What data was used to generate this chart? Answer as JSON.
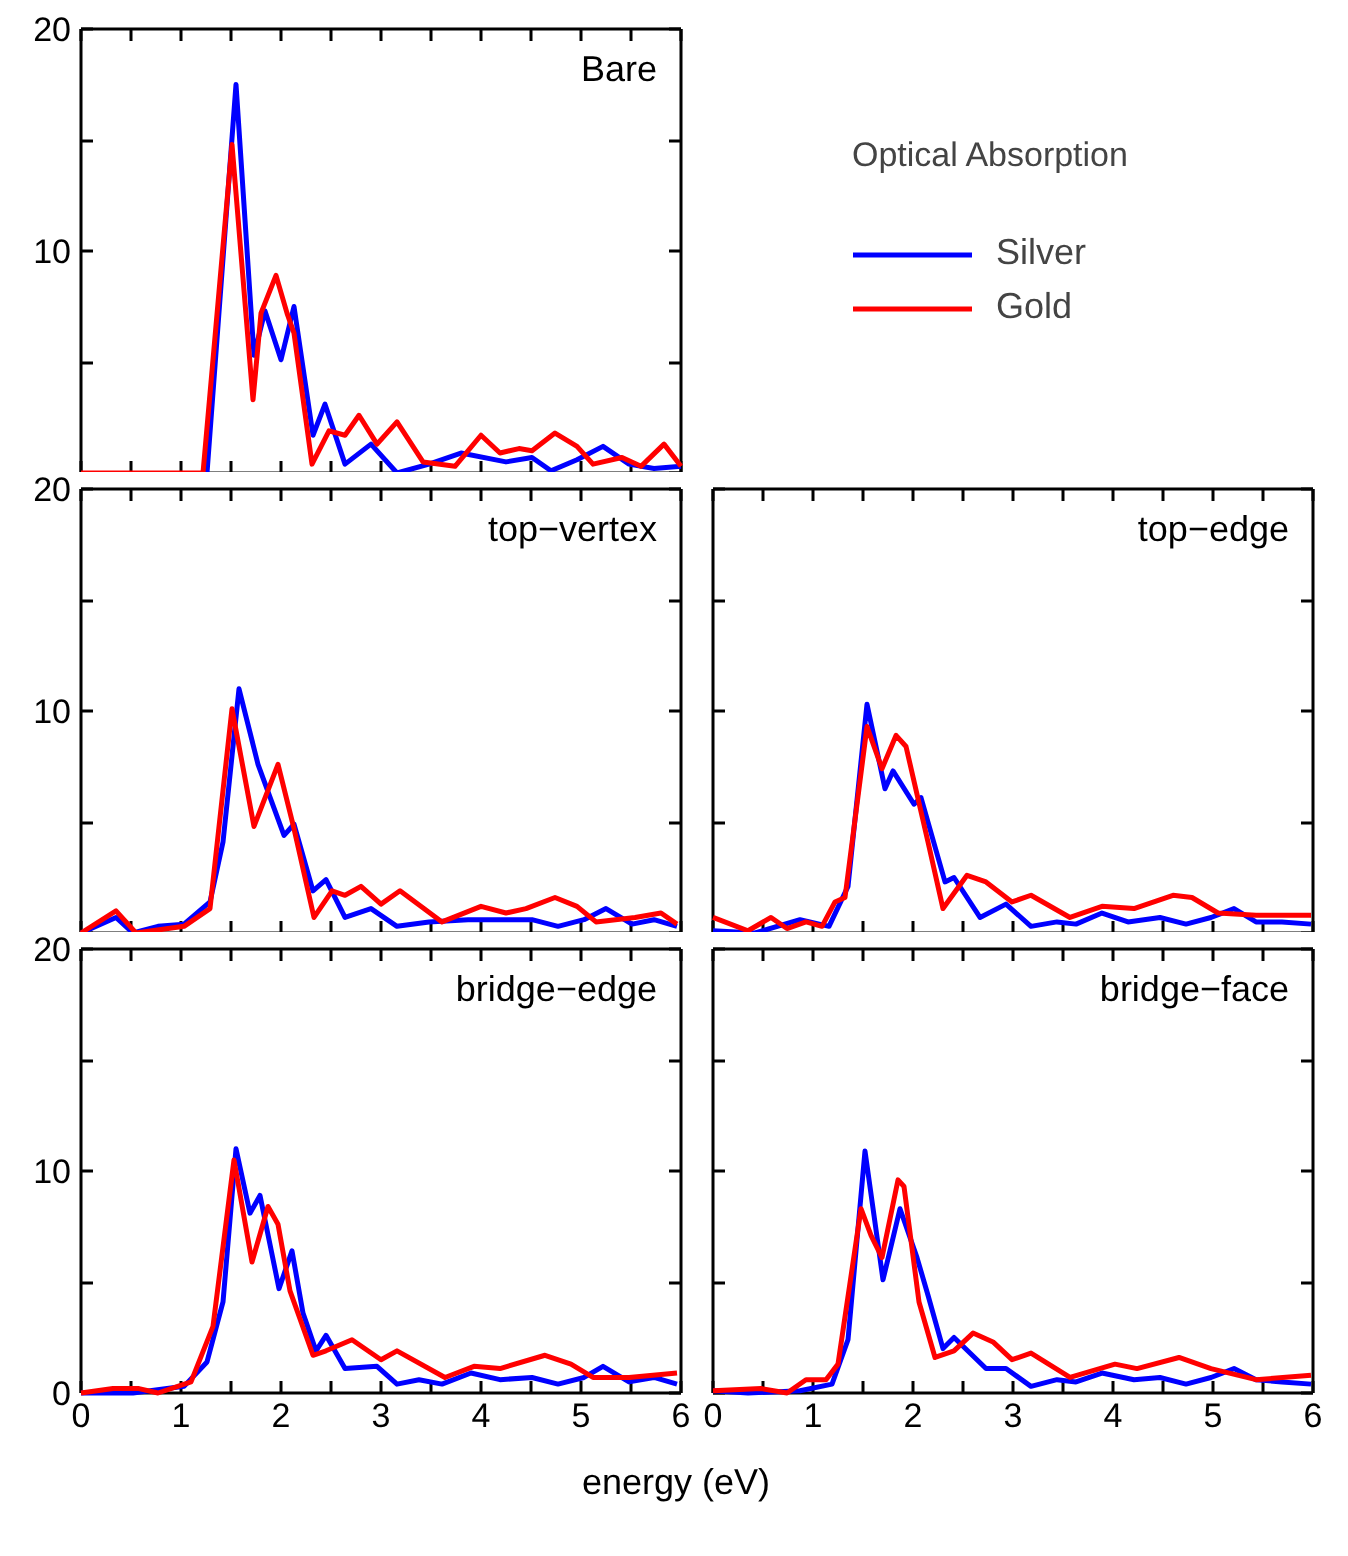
{
  "chart_data": [
    {
      "type": "line",
      "title": "Bare",
      "legend": "right",
      "legend_title": "Optical Absorption",
      "grid": false,
      "tick_labels": "y",
      "xlim": [
        0,
        6
      ],
      "ylim": [
        0,
        20
      ],
      "xticks": [
        0,
        {
          "value": 0.5,
          "label": null
        },
        1,
        {
          "value": 1.5,
          "label": null
        },
        2,
        {
          "value": 2.5,
          "label": null
        },
        3,
        {
          "value": 3.5,
          "label": null
        },
        4,
        {
          "value": 4.5,
          "label": null
        },
        5,
        {
          "value": 5.5,
          "label": null
        },
        6
      ],
      "yticks": [
        {
          "value": 0,
          "label": null
        },
        {
          "value": 5,
          "label": null
        },
        10,
        {
          "value": 15,
          "label": null
        },
        20
      ],
      "series": [
        {
          "name": "Silver",
          "color": "#0000ff",
          "x": [
            1.26,
            1.55,
            1.73,
            1.84,
            2.0,
            2.13,
            2.32,
            2.44,
            2.64,
            2.9,
            3.16,
            3.48,
            3.8,
            4.25,
            4.51,
            4.7,
            4.96,
            5.22,
            5.48,
            5.73,
            6.0
          ],
          "values": [
            0,
            17.5,
            5.3,
            7.3,
            5.1,
            7.5,
            1.7,
            3.1,
            0.4,
            1.3,
            0,
            0.4,
            0.9,
            0.5,
            0.7,
            0.1,
            0.6,
            1.2,
            0.4,
            0.2,
            0.3
          ]
        },
        {
          "name": "Gold",
          "color": "#ff0000",
          "x": [
            0,
            1.22,
            1.51,
            1.72,
            1.8,
            1.95,
            2.06,
            2.13,
            2.31,
            2.48,
            2.64,
            2.78,
            2.96,
            3.16,
            3.42,
            3.74,
            4.0,
            4.19,
            4.38,
            4.51,
            4.74,
            4.96,
            5.12,
            5.41,
            5.6,
            5.83,
            6.0
          ],
          "values": [
            0,
            0,
            14.8,
            3.3,
            7.2,
            8.9,
            7.2,
            6.3,
            0.4,
            1.9,
            1.7,
            2.6,
            1.3,
            2.3,
            0.5,
            0.3,
            1.7,
            0.9,
            1.1,
            1.0,
            1.8,
            1.2,
            0.4,
            0.7,
            0.3,
            1.3,
            0.3
          ]
        }
      ]
    },
    {
      "type": "line",
      "title": "top−vertex",
      "grid": false,
      "tick_labels": "y",
      "xlim": [
        0,
        6
      ],
      "ylim": [
        0,
        20
      ],
      "xticks": [
        0,
        {
          "value": 0.5,
          "label": null
        },
        1,
        {
          "value": 1.5,
          "label": null
        },
        2,
        {
          "value": 2.5,
          "label": null
        },
        3,
        {
          "value": 3.5,
          "label": null
        },
        4,
        {
          "value": 4.5,
          "label": null
        },
        5,
        {
          "value": 5.5,
          "label": null
        },
        6
      ],
      "yticks": [
        {
          "value": 0,
          "label": null
        },
        {
          "value": 5,
          "label": null
        },
        10,
        {
          "value": 15,
          "label": null
        },
        20
      ],
      "series": [
        {
          "color": "#0000ff",
          "x": [
            0,
            0.35,
            0.52,
            0.77,
            1.03,
            1.29,
            1.42,
            1.58,
            1.77,
            2.03,
            2.13,
            2.32,
            2.45,
            2.64,
            2.9,
            3.16,
            3.48,
            3.87,
            4.51,
            4.77,
            5.03,
            5.25,
            5.51,
            5.73,
            5.96
          ],
          "values": [
            0,
            0.7,
            0,
            0.3,
            0.4,
            1.4,
            4.1,
            11.0,
            7.6,
            4.4,
            4.9,
            1.9,
            2.4,
            0.7,
            1.1,
            0.3,
            0.5,
            0.6,
            0.6,
            0.3,
            0.6,
            1.1,
            0.4,
            0.6,
            0.3
          ]
        },
        {
          "color": "#ff0000",
          "x": [
            0,
            0.35,
            0.55,
            1.03,
            1.29,
            1.51,
            1.73,
            1.97,
            2.13,
            2.33,
            2.51,
            2.64,
            2.8,
            3.0,
            3.19,
            3.61,
            4.0,
            4.25,
            4.45,
            4.74,
            4.96,
            5.15,
            5.54,
            5.8,
            5.96
          ],
          "values": [
            0,
            1.0,
            0,
            0.3,
            1.1,
            10.1,
            4.8,
            7.6,
            4.7,
            0.7,
            1.9,
            1.7,
            2.1,
            1.3,
            1.9,
            0.5,
            1.2,
            0.9,
            1.1,
            1.6,
            1.2,
            0.5,
            0.7,
            0.9,
            0.4
          ]
        }
      ]
    },
    {
      "type": "line",
      "title": "top−edge",
      "grid": false,
      "tick_labels": false,
      "xlim": [
        0,
        6
      ],
      "ylim": [
        0,
        20
      ],
      "xticks": [
        0,
        {
          "value": 0.5,
          "label": null
        },
        1,
        {
          "value": 1.5,
          "label": null
        },
        2,
        {
          "value": 2.5,
          "label": null
        },
        3,
        {
          "value": 3.5,
          "label": null
        },
        4,
        {
          "value": 4.5,
          "label": null
        },
        5,
        {
          "value": 5.5,
          "label": null
        },
        6
      ],
      "yticks": [
        {
          "value": 0,
          "label": null
        },
        {
          "value": 5,
          "label": null
        },
        10,
        {
          "value": 15,
          "label": null
        },
        20
      ],
      "series": [
        {
          "color": "#0000ff",
          "x": [
            0,
            0.42,
            0.87,
            1.16,
            1.35,
            1.54,
            1.72,
            1.8,
            2.01,
            2.08,
            2.32,
            2.41,
            2.67,
            2.93,
            3.18,
            3.44,
            3.63,
            3.89,
            4.15,
            4.47,
            4.73,
            4.98,
            5.21,
            5.43,
            5.69,
            5.98
          ],
          "values": [
            0.1,
            0,
            0.6,
            0.3,
            2.1,
            10.3,
            6.5,
            7.3,
            5.8,
            6.1,
            2.3,
            2.5,
            0.7,
            1.3,
            0.3,
            0.5,
            0.4,
            0.9,
            0.5,
            0.7,
            0.4,
            0.7,
            1.1,
            0.5,
            0.5,
            0.4
          ]
        },
        {
          "color": "#ff0000",
          "x": [
            0,
            0.35,
            0.58,
            0.74,
            0.93,
            1.09,
            1.22,
            1.32,
            1.54,
            1.69,
            1.83,
            1.93,
            2.15,
            2.3,
            2.54,
            2.73,
            2.99,
            3.18,
            3.57,
            3.89,
            4.21,
            4.6,
            4.79,
            5.05,
            5.43,
            5.98
          ],
          "values": [
            0.7,
            0.1,
            0.7,
            0.2,
            0.5,
            0.3,
            1.4,
            1.6,
            9.3,
            7.4,
            8.9,
            8.4,
            4.1,
            1.1,
            2.6,
            2.3,
            1.4,
            1.7,
            0.7,
            1.2,
            1.1,
            1.7,
            1.6,
            0.9,
            0.8,
            0.8
          ]
        }
      ]
    },
    {
      "type": "line",
      "title": "bridge−edge",
      "xlabel": "energy (eV)",
      "grid": false,
      "xlim": [
        0,
        6
      ],
      "ylim": [
        0,
        20
      ],
      "xticks": [
        0,
        {
          "value": 0.5,
          "label": null
        },
        1,
        {
          "value": 1.5,
          "label": null
        },
        2,
        {
          "value": 2.5,
          "label": null
        },
        3,
        {
          "value": 3.5,
          "label": null
        },
        4,
        {
          "value": 4.5,
          "label": null
        },
        5,
        {
          "value": 5.5,
          "label": null
        },
        6
      ],
      "yticks": [
        0,
        {
          "value": 5,
          "label": null
        },
        10,
        {
          "value": 15,
          "label": null
        },
        20
      ],
      "series": [
        {
          "color": "#0000ff",
          "x": [
            0,
            0.52,
            1.03,
            1.26,
            1.42,
            1.55,
            1.69,
            1.79,
            1.98,
            2.11,
            2.22,
            2.35,
            2.45,
            2.64,
            2.96,
            3.16,
            3.38,
            3.61,
            3.9,
            4.19,
            4.51,
            4.77,
            5.03,
            5.22,
            5.48,
            5.73,
            5.96
          ],
          "values": [
            0,
            0,
            0.3,
            1.4,
            4.1,
            11.0,
            8.1,
            8.9,
            4.7,
            6.4,
            3.6,
            1.9,
            2.6,
            1.1,
            1.2,
            0.4,
            0.6,
            0.4,
            0.9,
            0.6,
            0.7,
            0.4,
            0.7,
            1.2,
            0.5,
            0.7,
            0.4
          ]
        },
        {
          "color": "#ff0000",
          "x": [
            0,
            0.32,
            0.58,
            0.77,
            1.1,
            1.32,
            1.53,
            1.71,
            1.87,
            1.97,
            2.09,
            2.32,
            2.45,
            2.71,
            3.0,
            3.16,
            3.64,
            3.93,
            4.19,
            4.64,
            4.9,
            5.12,
            5.48,
            5.96
          ],
          "values": [
            0,
            0.2,
            0.2,
            0,
            0.5,
            3.0,
            10.5,
            5.9,
            8.4,
            7.6,
            4.6,
            1.7,
            1.9,
            2.4,
            1.5,
            1.9,
            0.7,
            1.2,
            1.1,
            1.7,
            1.3,
            0.7,
            0.7,
            0.9
          ]
        }
      ]
    },
    {
      "type": "line",
      "title": "bridge−face",
      "grid": false,
      "tick_labels": "x",
      "xlim": [
        0,
        6
      ],
      "ylim": [
        0,
        20
      ],
      "xticks": [
        0,
        {
          "value": 0.5,
          "label": null
        },
        1,
        {
          "value": 1.5,
          "label": null
        },
        2,
        {
          "value": 2.5,
          "label": null
        },
        3,
        {
          "value": 3.5,
          "label": null
        },
        4,
        {
          "value": 4.5,
          "label": null
        },
        5,
        {
          "value": 5.5,
          "label": null
        },
        6
      ],
      "yticks": [
        0,
        {
          "value": 5,
          "label": null
        },
        10,
        {
          "value": 15,
          "label": null
        },
        20
      ],
      "series": [
        {
          "color": "#0000ff",
          "x": [
            0,
            0.35,
            0.87,
            1.19,
            1.35,
            1.52,
            1.7,
            1.87,
            2.04,
            2.15,
            2.3,
            2.41,
            2.73,
            2.93,
            3.18,
            3.44,
            3.63,
            3.89,
            4.21,
            4.47,
            4.73,
            4.98,
            5.21,
            5.43,
            5.69,
            5.98
          ],
          "values": [
            0.1,
            0,
            0.1,
            0.4,
            2.4,
            10.9,
            5.1,
            8.3,
            6.1,
            4.4,
            2.0,
            2.5,
            1.1,
            1.1,
            0.3,
            0.6,
            0.5,
            0.9,
            0.6,
            0.7,
            0.4,
            0.7,
            1.1,
            0.6,
            0.5,
            0.4
          ]
        },
        {
          "color": "#ff0000",
          "x": [
            0,
            0.48,
            0.74,
            0.93,
            1.13,
            1.25,
            1.48,
            1.58,
            1.69,
            1.85,
            1.91,
            2.06,
            2.22,
            2.41,
            2.6,
            2.8,
            2.99,
            3.18,
            3.57,
            4.02,
            4.24,
            4.66,
            4.98,
            5.43,
            5.98
          ],
          "values": [
            0.1,
            0.2,
            0,
            0.6,
            0.6,
            1.3,
            8.3,
            7.1,
            6.1,
            9.6,
            9.3,
            4.1,
            1.6,
            1.9,
            2.7,
            2.3,
            1.5,
            1.8,
            0.7,
            1.3,
            1.1,
            1.6,
            1.1,
            0.6,
            0.8
          ]
        }
      ]
    }
  ]
}
